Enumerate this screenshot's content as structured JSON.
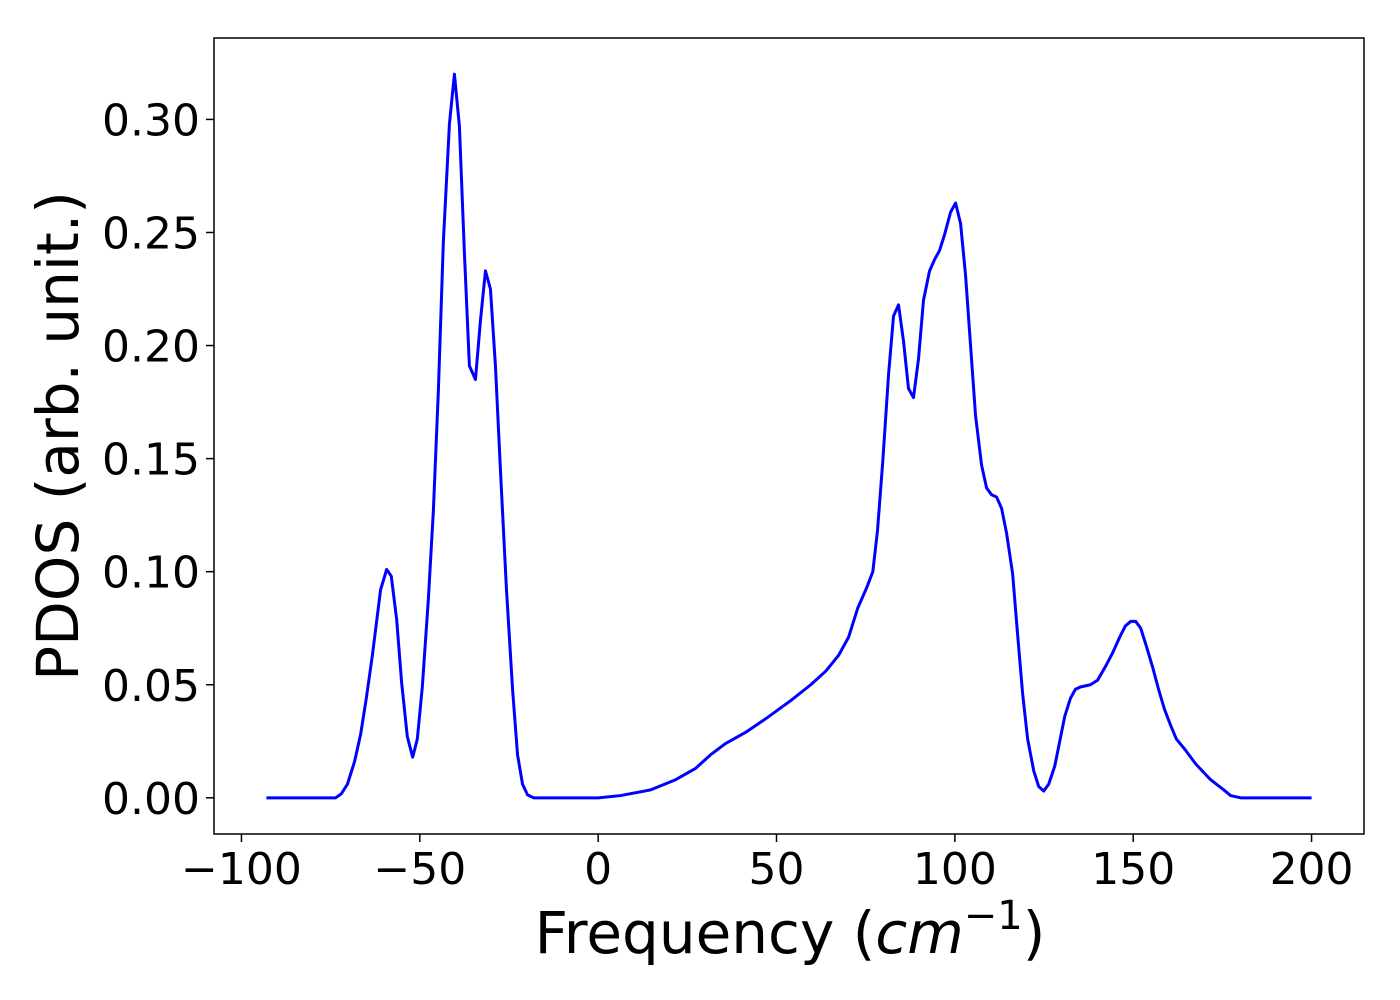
{
  "chart_data": {
    "type": "line",
    "xlabel": [
      "Frequency (",
      "cm",
      "−1",
      ")"
    ],
    "ylabel": "PDOS (arb. unit.)",
    "xlim": [
      -107.7,
      214.7
    ],
    "ylim": [
      -0.016,
      0.336
    ],
    "xticks": [
      {
        "value": -100,
        "label": "−100"
      },
      {
        "value": -50,
        "label": "−50"
      },
      0,
      50,
      100,
      150,
      200
    ],
    "yticks": [
      {
        "value": 0,
        "label": "0.00"
      },
      {
        "value": 0.05,
        "label": "0.05"
      },
      {
        "value": 0.1,
        "label": "0.10"
      },
      {
        "value": 0.15,
        "label": "0.15"
      },
      {
        "value": 0.2,
        "label": "0.20"
      },
      {
        "value": 0.25,
        "label": "0.25"
      },
      {
        "value": 0.3,
        "label": "0.30"
      }
    ],
    "grid": false,
    "series": [
      {
        "color": "#0000ff",
        "x": [
          -93,
          -73.6,
          -72,
          -70.3,
          -68.3,
          -66.6,
          -65,
          -63.3,
          -61,
          -59.3,
          -58,
          -56.5,
          -55.1,
          -53.5,
          -52,
          -50.7,
          -49.3,
          -47.6,
          -46.2,
          -44.8,
          -43.4,
          -41.7,
          -40.3,
          -38.9,
          -37.5,
          -36.1,
          -34.4,
          -33,
          -31.6,
          -30.2,
          -28.8,
          -27.4,
          -25.7,
          -24,
          -22.6,
          -21.2,
          -19.8,
          -18.1,
          0,
          6.3,
          14.7,
          21.7,
          27.3,
          31.5,
          35.7,
          41.4,
          47,
          54,
          59.6,
          63.8,
          67.4,
          70.2,
          72.8,
          75.3,
          77,
          78.3,
          79.8,
          81.4,
          82.8,
          84.2,
          85.6,
          87,
          88.4,
          89.8,
          91.2,
          92.9,
          94.3,
          95.7,
          97.1,
          98.8,
          100.2,
          101.6,
          103,
          104.4,
          105.8,
          107.5,
          108.9,
          110.3,
          111.7,
          113.1,
          114.5,
          116.2,
          117.6,
          119,
          120.4,
          122.1,
          123.5,
          124.9,
          126.3,
          128,
          129.4,
          130.8,
          132.4,
          133.8,
          135.2,
          138,
          140,
          142.2,
          144.2,
          146.2,
          147.8,
          149.3,
          150.7,
          152.1,
          153.7,
          155.4,
          157.1,
          158.8,
          160.5,
          162.1,
          164.7,
          167.5,
          171.7,
          175,
          177.3,
          180.1,
          200
        ],
        "values": [
          0,
          0,
          0.0018,
          0.006,
          0.016,
          0.028,
          0.044,
          0.063,
          0.092,
          0.101,
          0.098,
          0.079,
          0.051,
          0.027,
          0.018,
          0.026,
          0.049,
          0.088,
          0.127,
          0.18,
          0.246,
          0.298,
          0.32,
          0.297,
          0.241,
          0.191,
          0.185,
          0.211,
          0.233,
          0.225,
          0.191,
          0.145,
          0.092,
          0.048,
          0.019,
          0.006,
          0.0013,
          0,
          0,
          0.001,
          0.0035,
          0.008,
          0.013,
          0.019,
          0.024,
          0.029,
          0.035,
          0.043,
          0.05,
          0.056,
          0.063,
          0.071,
          0.084,
          0.093,
          0.1,
          0.118,
          0.149,
          0.187,
          0.213,
          0.218,
          0.202,
          0.181,
          0.177,
          0.194,
          0.22,
          0.233,
          0.238,
          0.242,
          0.249,
          0.259,
          0.263,
          0.254,
          0.231,
          0.2,
          0.169,
          0.147,
          0.137,
          0.134,
          0.133,
          0.128,
          0.117,
          0.099,
          0.072,
          0.046,
          0.026,
          0.012,
          0.005,
          0.003,
          0.006,
          0.014,
          0.025,
          0.036,
          0.044,
          0.048,
          0.049,
          0.05,
          0.052,
          0.058,
          0.064,
          0.071,
          0.076,
          0.078,
          0.078,
          0.075,
          0.067,
          0.058,
          0.048,
          0.039,
          0.032,
          0.026,
          0.021,
          0.015,
          0.008,
          0.004,
          0.001,
          0,
          0
        ]
      }
    ]
  }
}
